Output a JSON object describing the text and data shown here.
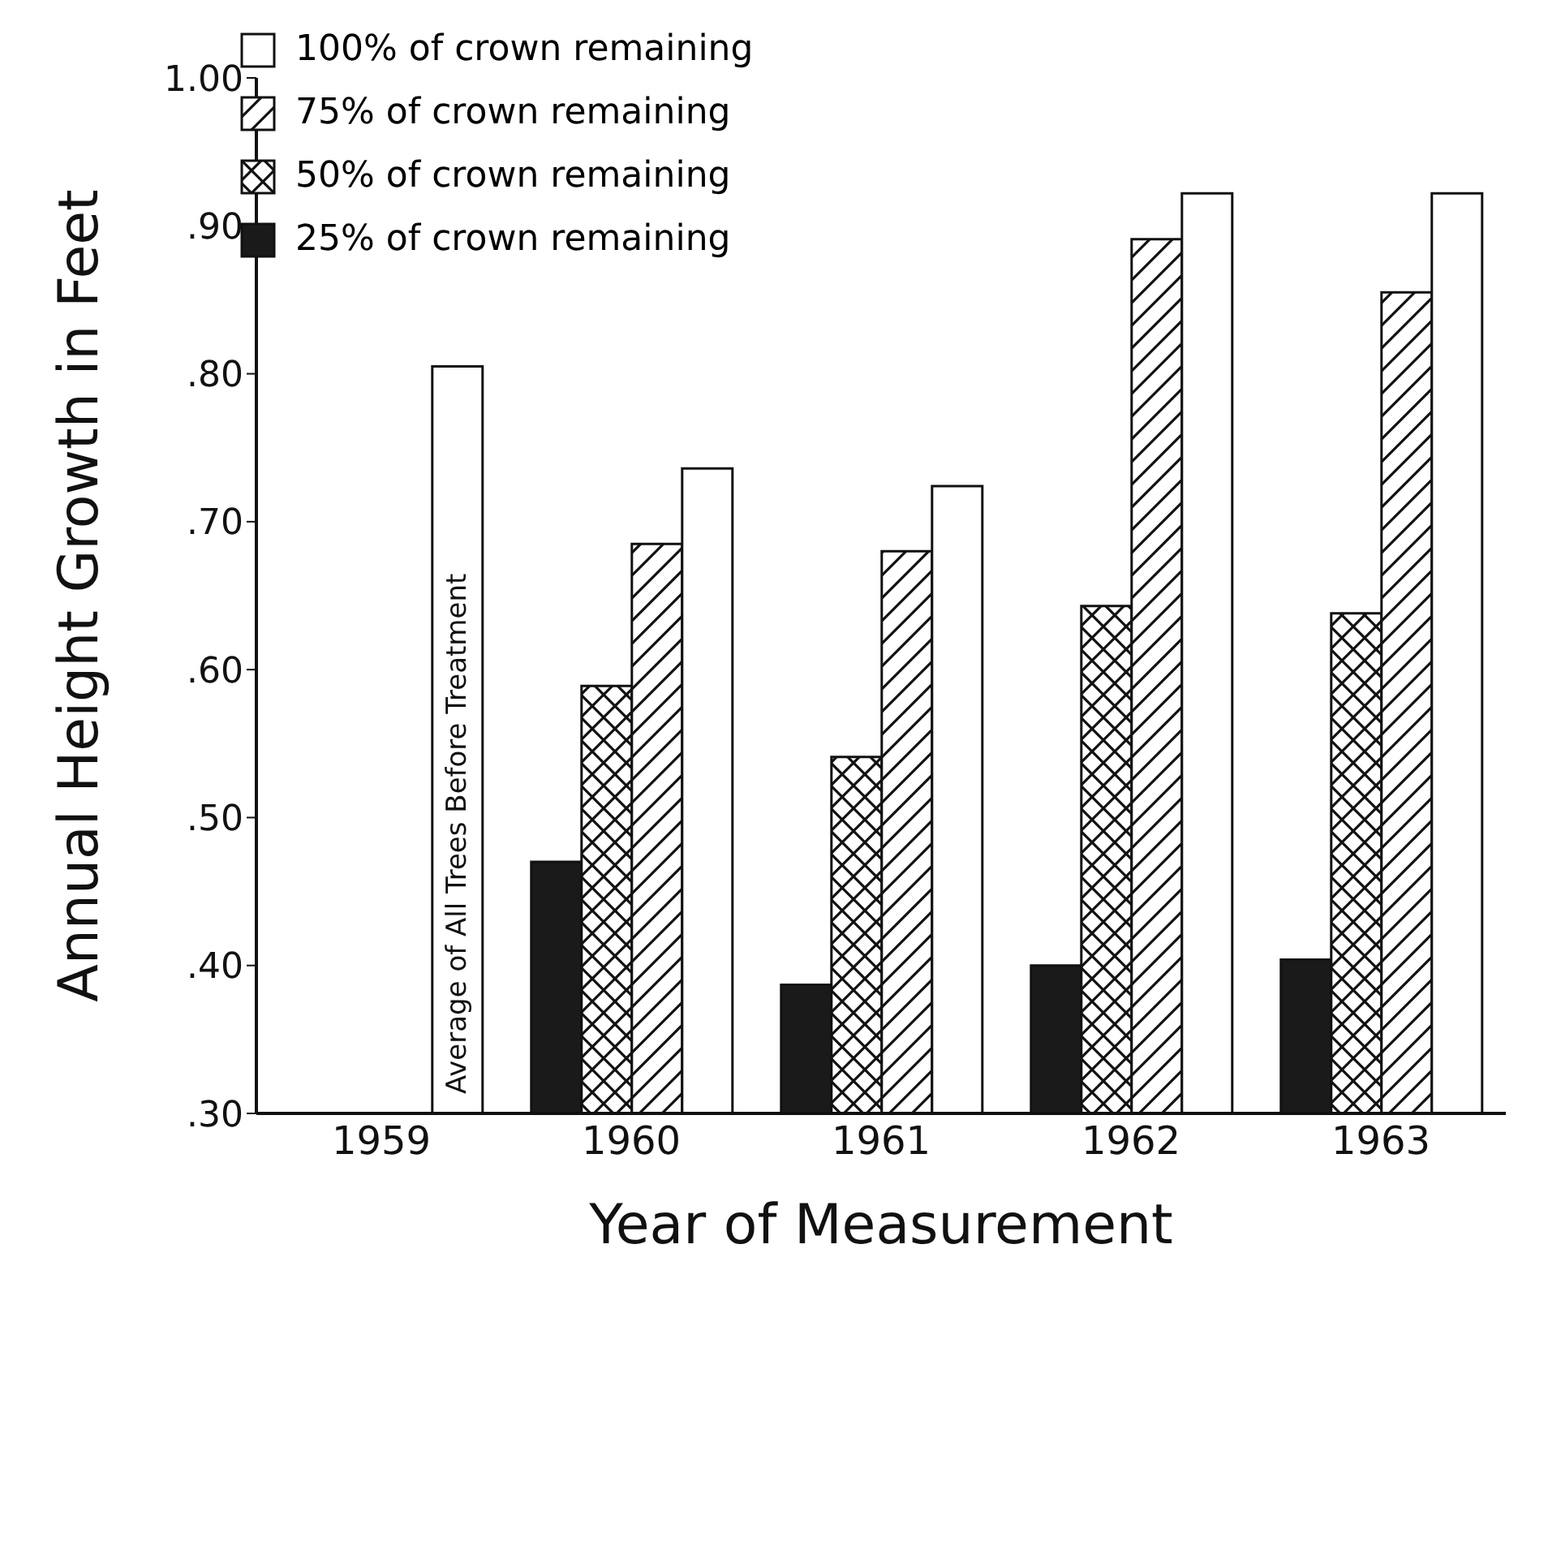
{
  "chart_data": {
    "type": "bar",
    "xlabel": "Year of Measurement",
    "ylabel": "Annual Height Growth in Feet",
    "categories": [
      "1959",
      "1960",
      "1961",
      "1962",
      "1963"
    ],
    "series": [
      {
        "name": "25% of crown remaining",
        "color": "#1a1a1a",
        "values": [
          null,
          0.47,
          0.387,
          0.4,
          0.404
        ]
      },
      {
        "name": "50% of crown remaining",
        "color": "#111111",
        "values": [
          null,
          0.589,
          0.541,
          0.643,
          0.638
        ]
      },
      {
        "name": "75% of crown remaining",
        "color": "#111111",
        "values": [
          null,
          0.685,
          0.68,
          0.891,
          0.855
        ]
      },
      {
        "name": "100% of crown remaining",
        "color": "#ffffff",
        "values": [
          0.805,
          0.736,
          0.724,
          0.922,
          0.922
        ]
      }
    ],
    "ylim": [
      0.3,
      1.0
    ],
    "yticks": [
      {
        "value": 0.3,
        "label": ".30"
      },
      {
        "value": 0.4,
        "label": ".40"
      },
      {
        "value": 0.5,
        "label": ".50"
      },
      {
        "value": 0.6,
        "label": ".60"
      },
      {
        "value": 0.7,
        "label": ".70"
      },
      {
        "value": 0.8,
        "label": ".80"
      },
      {
        "value": 0.9,
        "label": ".90"
      },
      {
        "value": 1.0,
        "label": "1.00"
      }
    ],
    "grid": false,
    "legend": "top left",
    "annotations": [
      "Average of All Trees Before Treatment"
    ]
  }
}
